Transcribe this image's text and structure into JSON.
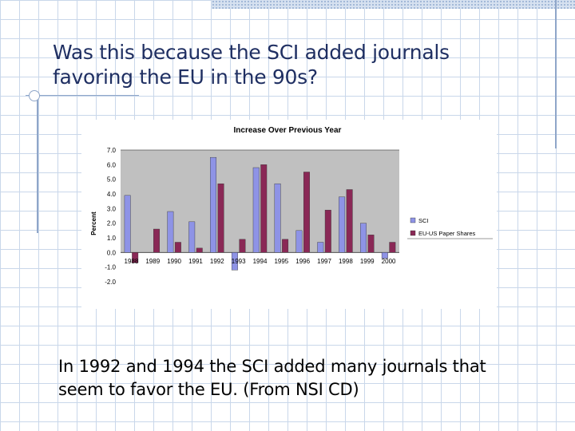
{
  "slide": {
    "title_line1": "Was this because the SCI added journals",
    "title_line2": "favoring the EU in the 90s?",
    "body_line1": "In 1992 and 1994 the SCI added many journals that",
    "body_line2": "seem to favor the EU. (From NSI CD)"
  },
  "colors": {
    "sci": "#8e93e6",
    "eu_us": "#8a2856",
    "plot_bg": "#c0c0c0",
    "title": "#1f2f62"
  },
  "chart_data": {
    "type": "bar",
    "title": "Increase Over Previous Year",
    "xlabel": "",
    "ylabel": "Percent",
    "ylim": [
      -2.0,
      7.0
    ],
    "yticks": [
      "7.0",
      "6.0",
      "5.0",
      "4.0",
      "3.0",
      "2.0",
      "1.0",
      "0.0",
      "-1.0",
      "-2.0"
    ],
    "categories": [
      "1988",
      "1989",
      "1990",
      "1991",
      "1992",
      "1993",
      "1994",
      "1995",
      "1996",
      "1997",
      "1998",
      "1999",
      "2000"
    ],
    "series": [
      {
        "name": "SCI",
        "values": [
          3.9,
          null,
          2.8,
          2.1,
          6.5,
          -1.2,
          5.8,
          4.7,
          1.5,
          0.7,
          3.8,
          2.0,
          -0.4
        ]
      },
      {
        "name": "EU-US Paper Shares",
        "values": [
          -0.7,
          1.6,
          0.7,
          0.3,
          4.7,
          0.9,
          6.0,
          0.9,
          5.5,
          2.9,
          4.3,
          1.2,
          0.7
        ]
      }
    ],
    "legend": "right",
    "grid": "horizontal at 7.0"
  }
}
